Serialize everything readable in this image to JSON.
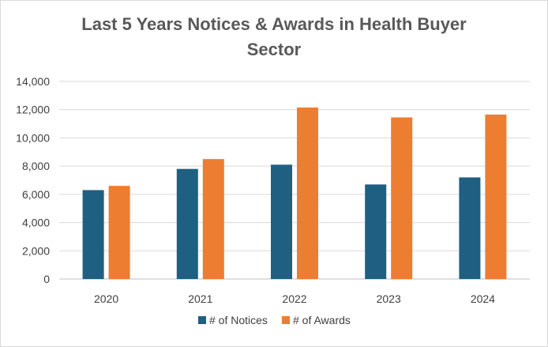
{
  "chart_data": {
    "type": "bar",
    "title_line1": "Last 5 Years Notices & Awards in Health Buyer",
    "title_line2": "Sector",
    "categories": [
      "2020",
      "2021",
      "2022",
      "2023",
      "2024"
    ],
    "series": [
      {
        "name": "# of Notices",
        "color": "#1f5f82",
        "values": [
          6300,
          7800,
          8100,
          6700,
          7200
        ]
      },
      {
        "name": "# of Awards",
        "color": "#ed7d31",
        "values": [
          6600,
          8500,
          12150,
          11450,
          11650
        ]
      }
    ],
    "ylim": [
      0,
      14000
    ],
    "yticks": [
      0,
      2000,
      4000,
      6000,
      8000,
      10000,
      12000,
      14000
    ],
    "ytick_labels": [
      "0",
      "2,000",
      "4,000",
      "6,000",
      "8,000",
      "10,000",
      "12,000",
      "14,000"
    ],
    "grid": true,
    "legend_position": "bottom"
  }
}
